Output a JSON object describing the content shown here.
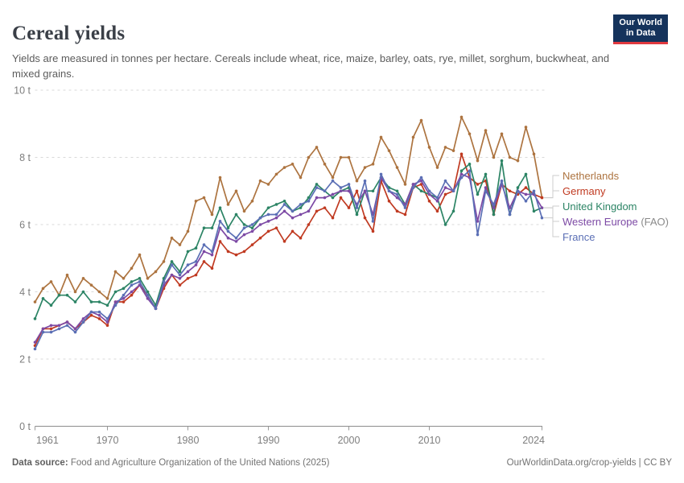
{
  "header": {
    "title": "Cereal yields",
    "subtitle": "Yields are measured in tonnes per hectare. Cereals include wheat, rice, maize, barley, oats, rye, millet, sorghum, buckwheat, and mixed grains."
  },
  "logo": {
    "line1": "Our World",
    "line2": "in Data",
    "bg_color": "#15335c",
    "accent_color": "#e0393f"
  },
  "footer": {
    "source_label": "Data source:",
    "source_text": "Food and Agriculture Organization of the United Nations (2025)",
    "right_text": "OurWorldinData.org/crop-yields | CC BY"
  },
  "chart_data": {
    "type": "line",
    "title": "Cereal yields",
    "ylabel": "tonnes per hectare",
    "xlabel": "",
    "ylim": [
      0,
      10
    ],
    "xlim": [
      1961,
      2024
    ],
    "grid": "horizontal dashed",
    "grid_color": "#d9d9d9",
    "axis_color": "#8c8c8c",
    "legend_position": "right",
    "y_ticks": [
      0,
      2,
      4,
      6,
      8,
      10
    ],
    "y_tick_labels": [
      "0 t",
      "2 t",
      "4 t",
      "6 t",
      "8 t",
      "10 t"
    ],
    "x_ticks": [
      1961,
      1970,
      1980,
      1990,
      2000,
      2010,
      2024
    ],
    "x_tick_labels": [
      "1961",
      "1970",
      "1980",
      "1990",
      "2000",
      "2010",
      "2024"
    ],
    "x": [
      1961,
      1962,
      1963,
      1964,
      1965,
      1966,
      1967,
      1968,
      1969,
      1970,
      1971,
      1972,
      1973,
      1974,
      1975,
      1976,
      1977,
      1978,
      1979,
      1980,
      1981,
      1982,
      1983,
      1984,
      1985,
      1986,
      1987,
      1988,
      1989,
      1990,
      1991,
      1992,
      1993,
      1994,
      1995,
      1996,
      1997,
      1998,
      1999,
      2000,
      2001,
      2002,
      2003,
      2004,
      2005,
      2006,
      2007,
      2008,
      2009,
      2010,
      2011,
      2012,
      2013,
      2014,
      2015,
      2016,
      2017,
      2018,
      2019,
      2020,
      2021,
      2022,
      2023,
      2024
    ],
    "series": [
      {
        "name": "Netherlands",
        "legend_main": "Netherlands",
        "legend_suffix": "",
        "color": "#ad7440",
        "values": [
          3.7,
          4.1,
          4.3,
          3.9,
          4.5,
          4.0,
          4.4,
          4.2,
          4.0,
          3.8,
          4.6,
          4.4,
          4.7,
          5.1,
          4.4,
          4.6,
          4.9,
          5.6,
          5.4,
          5.8,
          6.7,
          6.8,
          6.3,
          7.4,
          6.6,
          7.0,
          6.4,
          6.7,
          7.3,
          7.2,
          7.5,
          7.7,
          7.8,
          7.4,
          8.0,
          8.3,
          7.8,
          7.4,
          8.0,
          8.0,
          7.3,
          7.7,
          7.8,
          8.6,
          8.2,
          7.7,
          7.2,
          8.6,
          9.1,
          8.3,
          7.7,
          8.3,
          8.2,
          9.2,
          8.7,
          7.9,
          8.8,
          8.0,
          8.7,
          8.0,
          7.9,
          8.9,
          8.1,
          6.8
        ]
      },
      {
        "name": "Germany",
        "legend_main": "Germany",
        "legend_suffix": "",
        "color": "#c03a21",
        "values": [
          2.4,
          2.9,
          2.9,
          3.0,
          3.1,
          2.9,
          3.1,
          3.3,
          3.2,
          3.0,
          3.7,
          3.7,
          3.9,
          4.2,
          3.9,
          3.5,
          4.1,
          4.5,
          4.2,
          4.4,
          4.5,
          4.9,
          4.7,
          5.5,
          5.2,
          5.1,
          5.2,
          5.4,
          5.6,
          5.8,
          5.9,
          5.5,
          5.8,
          5.6,
          6.0,
          6.4,
          6.5,
          6.2,
          6.8,
          6.5,
          7.0,
          6.2,
          5.8,
          7.3,
          6.7,
          6.4,
          6.3,
          7.1,
          7.2,
          6.7,
          6.4,
          6.9,
          7.0,
          8.1,
          7.4,
          7.2,
          7.3,
          6.3,
          7.2,
          7.0,
          6.9,
          7.1,
          6.9,
          6.8
        ]
      },
      {
        "name": "United Kingdom",
        "legend_main": "United Kingdom",
        "legend_suffix": "",
        "color": "#2c8465",
        "values": [
          3.2,
          3.8,
          3.6,
          3.9,
          3.9,
          3.7,
          4.0,
          3.7,
          3.7,
          3.6,
          4.0,
          4.1,
          4.3,
          4.4,
          4.0,
          3.6,
          4.4,
          4.9,
          4.6,
          5.2,
          5.3,
          5.9,
          5.9,
          6.5,
          5.9,
          6.3,
          6.0,
          5.9,
          6.2,
          6.5,
          6.6,
          6.7,
          6.4,
          6.5,
          6.8,
          7.2,
          7.0,
          6.8,
          7.0,
          7.1,
          6.3,
          7.0,
          7.0,
          7.4,
          7.1,
          7.0,
          6.6,
          7.2,
          7.0,
          6.9,
          6.8,
          6.0,
          6.4,
          7.6,
          7.8,
          6.9,
          7.5,
          6.3,
          7.9,
          6.3,
          7.1,
          7.5,
          6.4,
          6.5
        ]
      },
      {
        "name": "Western Europe (FAO)",
        "legend_main": "Western Europe",
        "legend_suffix": " (FAO)",
        "color": "#7d4aa5",
        "values": [
          2.5,
          2.9,
          3.0,
          3.0,
          3.1,
          2.9,
          3.2,
          3.4,
          3.3,
          3.1,
          3.7,
          3.8,
          4.0,
          4.2,
          3.8,
          3.5,
          4.2,
          4.5,
          4.4,
          4.6,
          4.8,
          5.2,
          5.1,
          5.9,
          5.6,
          5.5,
          5.7,
          5.8,
          6.0,
          6.1,
          6.2,
          6.4,
          6.2,
          6.3,
          6.4,
          6.8,
          6.8,
          6.9,
          7.0,
          7.0,
          6.6,
          7.0,
          6.3,
          7.4,
          7.0,
          6.8,
          6.6,
          7.2,
          7.3,
          6.9,
          6.7,
          7.1,
          7.0,
          7.5,
          7.4,
          6.1,
          7.1,
          6.5,
          7.2,
          6.5,
          7.0,
          6.9,
          6.9,
          6.5
        ]
      },
      {
        "name": "France",
        "legend_main": "France",
        "legend_suffix": "",
        "color": "#5b6fb5",
        "values": [
          2.3,
          2.8,
          2.8,
          2.9,
          3.0,
          2.8,
          3.1,
          3.4,
          3.4,
          3.2,
          3.6,
          3.9,
          4.2,
          4.3,
          3.9,
          3.5,
          4.3,
          4.8,
          4.5,
          4.8,
          4.9,
          5.4,
          5.2,
          6.1,
          5.8,
          5.6,
          5.9,
          6.0,
          6.2,
          6.3,
          6.3,
          6.6,
          6.4,
          6.6,
          6.7,
          7.1,
          7.0,
          7.3,
          7.1,
          7.2,
          6.5,
          7.3,
          6.1,
          7.5,
          7.0,
          6.9,
          6.5,
          7.1,
          7.4,
          7.0,
          6.8,
          7.3,
          7.0,
          7.4,
          7.6,
          5.7,
          7.0,
          6.6,
          7.3,
          6.3,
          7.0,
          6.7,
          7.0,
          6.2
        ]
      }
    ]
  }
}
